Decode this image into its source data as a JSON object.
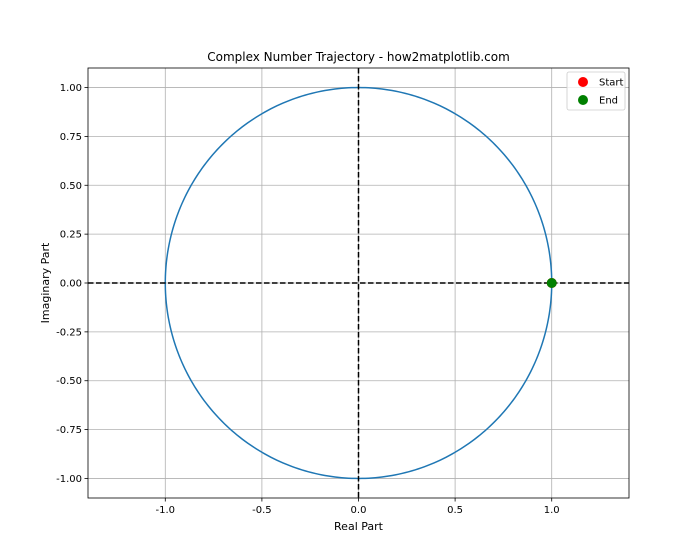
{
  "chart_data": {
    "type": "line",
    "title": "Complex Number Trajectory - how2matplotlib.com",
    "xlabel": "Real Part",
    "ylabel": "Imaginary Part",
    "xlim": [
      -1.4,
      1.4
    ],
    "ylim": [
      -1.1,
      1.1
    ],
    "xticks": [
      -1.0,
      -0.5,
      0.0,
      0.5,
      1.0
    ],
    "xtick_labels": [
      "-1.0",
      "-0.5",
      "0.0",
      "0.5",
      "1.0"
    ],
    "yticks": [
      1.0,
      0.75,
      0.5,
      0.25,
      0.0,
      -0.25,
      -0.5,
      -0.75,
      -1.0
    ],
    "ytick_labels": [
      "1.00",
      "0.75",
      "0.50",
      "0.25",
      "0.00",
      "-0.25",
      "-0.50",
      "-0.75",
      "-1.00"
    ],
    "grid": true,
    "trajectory": {
      "type": "circle",
      "center": [
        0,
        0
      ],
      "radius": 1,
      "color": "#1f77b4"
    },
    "reference_lines": [
      {
        "orientation": "horizontal",
        "value": 0,
        "style": "dashed",
        "color": "#000000"
      },
      {
        "orientation": "vertical",
        "value": 0,
        "style": "dashed",
        "color": "#000000"
      }
    ],
    "markers": [
      {
        "name": "Start",
        "x": 1.0,
        "y": 0.0,
        "color": "#ff0000"
      },
      {
        "name": "End",
        "x": 1.0,
        "y": 0.0,
        "color": "#008000"
      }
    ],
    "legend": {
      "position": "upper right",
      "entries": [
        {
          "label": "Start",
          "color": "#ff0000"
        },
        {
          "label": "End",
          "color": "#008000"
        }
      ]
    }
  }
}
